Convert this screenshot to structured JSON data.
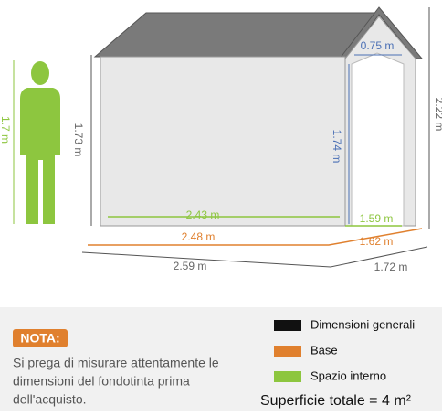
{
  "dimensions": {
    "person_height": "1.7 m",
    "wall_height": "1.73 m",
    "door_width": "0.75 m",
    "door_height": "1.74 m",
    "total_height": "2.22 m",
    "inner_length": "2.43 m",
    "inner_width": "1.59 m",
    "base_length": "2.48 m",
    "base_width": "1.62 m",
    "overall_length": "2.59 m",
    "overall_width": "1.72 m"
  },
  "note": {
    "badge": "NOTA:",
    "lines": [
      "Si prega di misurare attentamente le",
      "dimensioni del fondotinta prima",
      "dell'acquisto."
    ]
  },
  "legend": [
    {
      "name": "Dimensioni generali",
      "color": "#111111"
    },
    {
      "name": "Base",
      "color": "#e0802e"
    },
    {
      "name": "Spazio interno",
      "color": "#8dc63f"
    }
  ],
  "total_area": "Superficie totale = 4 m²"
}
